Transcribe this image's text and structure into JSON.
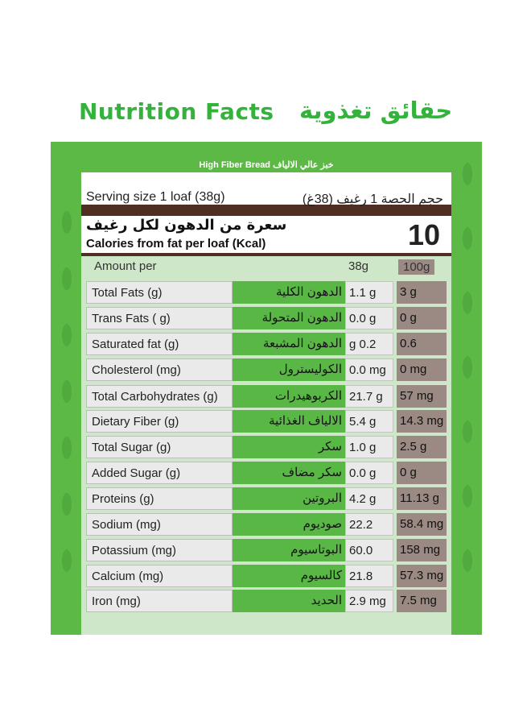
{
  "title_en": "Nutrition Facts",
  "title_ar": "حقائق تغذوية",
  "subtitle": "High Fiber Bread خبز عالي الالياف",
  "serving_en": "Serving size 1 loaf (38g)",
  "serving_ar": "حجم الحصة 1 رغيف (38غ)",
  "calories_ar": "سعرة من الدهون لكل رغيف",
  "calories_en": "Calories from fat per loaf (Kcal)",
  "calories_value": "10",
  "header": {
    "amount": "Amount per",
    "col1": "38g",
    "col2": "100g"
  },
  "rows": [
    {
      "en": "Total Fats (g)",
      "ar": "الدهون الكلية",
      "v38": "1.1 g",
      "v100": "3 g"
    },
    {
      "en": "Trans Fats ( g)",
      "ar": "الدهون المتحولة",
      "v38": "0.0 g",
      "v100": "0 g"
    },
    {
      "en": "Saturated fat (g)",
      "ar": "الدهون المشبعة",
      "v38": "g 0.2",
      "v100": "0.6"
    },
    {
      "en": "Cholesterol (mg)",
      "ar": "الكوليسترول",
      "v38": "0.0 mg",
      "v100": "0 mg"
    },
    {
      "en": "Total Carbohydrates (g)",
      "ar": "الكربوهيدرات",
      "v38": "21.7 g",
      "v100": "57 mg"
    },
    {
      "en": "Dietary Fiber (g)",
      "ar": "الالياف الغذائية",
      "v38": "5.4 g",
      "v100": "14.3 mg"
    },
    {
      "en": "Total Sugar (g)",
      "ar": "سكر",
      "v38": "1.0 g",
      "v100": "2.5 g"
    },
    {
      "en": "Added Sugar (g)",
      "ar": "سكر مضاف",
      "v38": "0.0 g",
      "v100": "0 g"
    },
    {
      "en": "Proteins (g)",
      "ar": "البروتين",
      "v38": "4.2 g",
      "v100": "11.13 g"
    },
    {
      "en": "Sodium (mg)",
      "ar": "صوديوم",
      "v38": "22.2 mg",
      "v100": "58.4 mg"
    },
    {
      "en": "Potassium (mg)",
      "ar": "البوتاسيوم",
      "v38": "60.0 mg",
      "v100": "158 mg"
    },
    {
      "en": "Calcium (mg)",
      "ar": "كالسيوم",
      "v38": "21.8 mg",
      "v100": "57.3 mg"
    },
    {
      "en": "Iron (mg)",
      "ar": "الحديد",
      "v38": "2.9 mg",
      "v100": "7.5 mg"
    }
  ],
  "colors": {
    "green": "#5cb946",
    "title_green": "#33b23c",
    "brown": "#4e2f21",
    "mauve": "#9b8a84"
  }
}
